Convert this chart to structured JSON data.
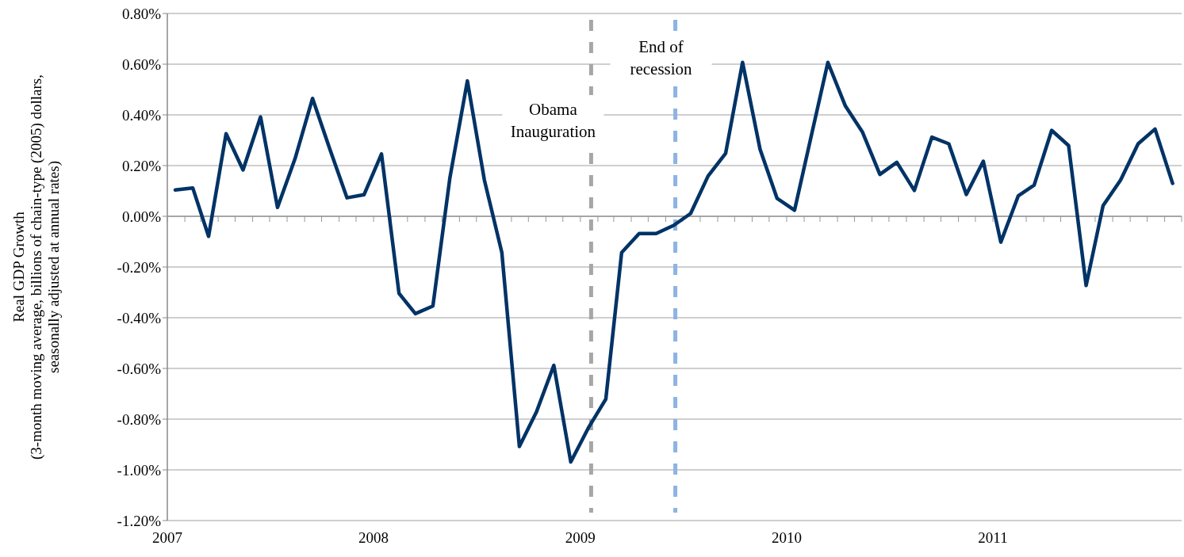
{
  "chart_data": {
    "type": "line",
    "ylabel": "Real GDP Growth\n(3-month moving average, billions of chain-type (2005) dollars,\nseasonally adjusted at annual rates)",
    "x": [
      "2007-01-15",
      "2007-02-15",
      "2007-03-15",
      "2007-04-15",
      "2007-05-15",
      "2007-06-15",
      "2007-07-15",
      "2007-08-15",
      "2007-09-15",
      "2007-10-15",
      "2007-11-15",
      "2007-12-15",
      "2008-01-15",
      "2008-02-15",
      "2008-03-15",
      "2008-04-15",
      "2008-05-15",
      "2008-06-15",
      "2008-07-15",
      "2008-08-15",
      "2008-09-15",
      "2008-10-15",
      "2008-11-15",
      "2008-12-15",
      "2009-01-15",
      "2009-02-15",
      "2009-03-15",
      "2009-04-15",
      "2009-05-15",
      "2009-06-15",
      "2009-07-15",
      "2009-08-15",
      "2009-09-15",
      "2009-10-15",
      "2009-11-15",
      "2009-12-15",
      "2010-01-15",
      "2010-02-15",
      "2010-03-15",
      "2010-04-15",
      "2010-05-15",
      "2010-06-15",
      "2010-07-15",
      "2010-08-15",
      "2010-09-15",
      "2010-10-15",
      "2010-11-15",
      "2010-12-15",
      "2011-01-15",
      "2011-02-15",
      "2011-03-15",
      "2011-04-15",
      "2011-05-15",
      "2011-06-15",
      "2011-07-15",
      "2011-08-15",
      "2011-09-15",
      "2011-10-15",
      "2011-11-15"
    ],
    "series": [
      {
        "color": "#003366",
        "values": [
          0.104,
          0.112,
          -0.079,
          0.326,
          0.183,
          0.392,
          0.035,
          0.227,
          0.465,
          0.269,
          0.073,
          0.085,
          0.246,
          -0.304,
          -0.384,
          -0.354,
          0.151,
          0.534,
          0.144,
          -0.143,
          -0.908,
          -0.773,
          -0.588,
          -0.969,
          -0.835,
          -0.721,
          -0.143,
          -0.068,
          -0.068,
          -0.036,
          0.011,
          0.159,
          0.248,
          0.607,
          0.264,
          0.071,
          0.024,
          0.331,
          0.607,
          0.435,
          0.333,
          0.165,
          0.213,
          0.102,
          0.312,
          0.286,
          0.086,
          0.217,
          -0.102,
          0.081,
          0.123,
          0.339,
          0.279,
          -0.273,
          0.042,
          0.143,
          0.286,
          0.344,
          0.13
        ]
      }
    ],
    "xlim": [
      "2007-01-01",
      "2011-12-01"
    ],
    "xticks": [
      {
        "value": "2007-01-01",
        "label": "2007"
      },
      {
        "value": "2007-02-01",
        "label": null
      },
      {
        "value": "2007-03-01",
        "label": null
      },
      {
        "value": "2007-04-01",
        "label": null
      },
      {
        "value": "2007-05-01",
        "label": null
      },
      {
        "value": "2007-06-01",
        "label": null
      },
      {
        "value": "2007-07-01",
        "label": null
      },
      {
        "value": "2007-08-01",
        "label": null
      },
      {
        "value": "2007-09-01",
        "label": null
      },
      {
        "value": "2007-10-01",
        "label": null
      },
      {
        "value": "2007-11-01",
        "label": null
      },
      {
        "value": "2007-12-01",
        "label": null
      },
      {
        "value": "2008-01-01",
        "label": "2008"
      },
      {
        "value": "2008-02-01",
        "label": null
      },
      {
        "value": "2008-03-01",
        "label": null
      },
      {
        "value": "2008-04-01",
        "label": null
      },
      {
        "value": "2008-05-01",
        "label": null
      },
      {
        "value": "2008-06-01",
        "label": null
      },
      {
        "value": "2008-07-01",
        "label": null
      },
      {
        "value": "2008-08-01",
        "label": null
      },
      {
        "value": "2008-09-01",
        "label": null
      },
      {
        "value": "2008-10-01",
        "label": null
      },
      {
        "value": "2008-11-01",
        "label": null
      },
      {
        "value": "2008-12-01",
        "label": null
      },
      {
        "value": "2009-01-01",
        "label": "2009"
      },
      {
        "value": "2009-02-01",
        "label": null
      },
      {
        "value": "2009-03-01",
        "label": null
      },
      {
        "value": "2009-04-01",
        "label": null
      },
      {
        "value": "2009-05-01",
        "label": null
      },
      {
        "value": "2009-06-01",
        "label": null
      },
      {
        "value": "2009-07-01",
        "label": null
      },
      {
        "value": "2009-08-01",
        "label": null
      },
      {
        "value": "2009-09-01",
        "label": null
      },
      {
        "value": "2009-10-01",
        "label": null
      },
      {
        "value": "2009-11-01",
        "label": null
      },
      {
        "value": "2009-12-01",
        "label": null
      },
      {
        "value": "2010-01-01",
        "label": "2010"
      },
      {
        "value": "2010-02-01",
        "label": null
      },
      {
        "value": "2010-03-01",
        "label": null
      },
      {
        "value": "2010-04-01",
        "label": null
      },
      {
        "value": "2010-05-01",
        "label": null
      },
      {
        "value": "2010-06-01",
        "label": null
      },
      {
        "value": "2010-07-01",
        "label": null
      },
      {
        "value": "2010-08-01",
        "label": null
      },
      {
        "value": "2010-09-01",
        "label": null
      },
      {
        "value": "2010-10-01",
        "label": null
      },
      {
        "value": "2010-11-01",
        "label": null
      },
      {
        "value": "2010-12-01",
        "label": null
      },
      {
        "value": "2011-01-01",
        "label": "2011"
      },
      {
        "value": "2011-02-01",
        "label": null
      },
      {
        "value": "2011-03-01",
        "label": null
      },
      {
        "value": "2011-04-01",
        "label": null
      },
      {
        "value": "2011-05-01",
        "label": null
      },
      {
        "value": "2011-06-01",
        "label": null
      },
      {
        "value": "2011-07-01",
        "label": null
      },
      {
        "value": "2011-08-01",
        "label": null
      },
      {
        "value": "2011-09-01",
        "label": null
      },
      {
        "value": "2011-10-01",
        "label": null
      },
      {
        "value": "2011-11-01",
        "label": null
      },
      {
        "value": "2011-12-01",
        "label": null
      }
    ],
    "ylim": [
      -1.2,
      0.8
    ],
    "yticks": [
      {
        "value": -1.2,
        "label": "-1.20%"
      },
      {
        "value": -1.0,
        "label": "-1.00%"
      },
      {
        "value": -0.8,
        "label": "-0.80%"
      },
      {
        "value": -0.6,
        "label": "-0.60%"
      },
      {
        "value": -0.4,
        "label": "-0.40%"
      },
      {
        "value": -0.2,
        "label": "-0.20%"
      },
      {
        "value": 0,
        "label": "0.00%"
      },
      {
        "value": 0.2,
        "label": "0.20%"
      },
      {
        "value": 0.4,
        "label": "0.40%"
      },
      {
        "value": 0.6,
        "label": "0.60%"
      },
      {
        "value": 0.8,
        "label": "0.80%"
      }
    ],
    "grid": "y",
    "line_style": "solid",
    "ref_lines": [
      {
        "axis": "x",
        "value": "2009-01-20",
        "label": "Obama\nInauguration",
        "color": "#a6a6a6",
        "line_style": "dashed"
      },
      {
        "axis": "x",
        "value": "2009-06-18",
        "label": "End of\nrecession",
        "color": "#8db3e2",
        "line_style": "dashed"
      }
    ]
  }
}
